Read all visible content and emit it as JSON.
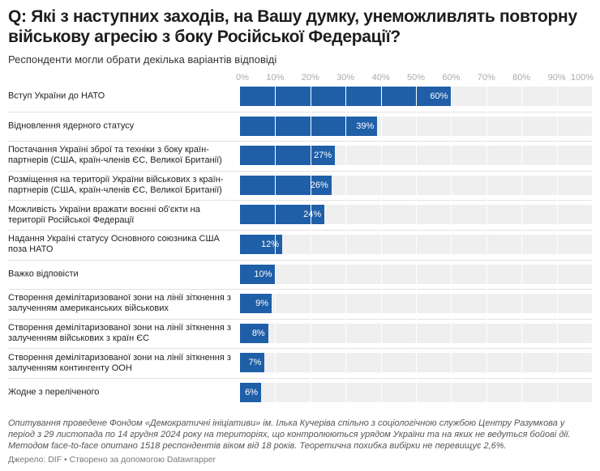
{
  "chart_data": {
    "type": "bar",
    "orientation": "horizontal",
    "title": "Q: Які з наступних заходів, на Вашу думку, унеможливлять повторну військову агресію з боку Російської Федерації?",
    "subtitle": "Респонденти могли обрати декілька варіантів відповіді",
    "xlim": [
      0,
      100
    ],
    "ticks": [
      "0%",
      "10%",
      "20%",
      "30%",
      "40%",
      "50%",
      "60%",
      "70%",
      "80%",
      "90%",
      "100%"
    ],
    "categories": [
      "Вступ України до НАТО",
      "Відновлення ядерного статусу",
      "Постачання Україні зброї та техніки з боку країн-партнерів (США, країн-членів ЄС, Великої Британії)",
      "Розміщення на території України військових з країн-партнерів (США, країн-членів ЄС, Великої Британії)",
      "Можливість України вражати воєнні об'єкти на території Російської Федерації",
      "Надання Україні статусу Основного союзника США поза НАТО",
      "Важко відповісти",
      "Створення демілітаризованої зони на лінії зіткнення з залученням американських військових",
      "Створення демілітаризованої зони на лінії зіткнення з залученням військових з країн ЄС",
      "Створення демілітаризованої зони на лінії зіткнення з залученням контингенту ООН",
      "Жодне з переліченого"
    ],
    "values": [
      60,
      39,
      27,
      26,
      24,
      12,
      10,
      9,
      8,
      7,
      6
    ],
    "value_labels": [
      "60%",
      "39%",
      "27%",
      "26%",
      "24%",
      "12%",
      "10%",
      "9%",
      "8%",
      "7%",
      "6%"
    ],
    "colors": {
      "bar": "#1f5fa8",
      "background": "#efefef"
    }
  },
  "notes": "Опитування проведене Фондом «Демократичні ініціативи» ім. Ілька Кучеріва спільно з соціологічною службою Центру Разумкова у період з 29 листопада по 14 грудня 2024 року на територіях, що контролюються урядом України та на яких не ведуться бойові дії. Методом face-to-face опитано 1518 респондентів віком від 18 років. Теоретична похибка вибірки не перевищує 2,6%.",
  "source": "Джерело: DIF • Створено за допомогою Datawrapper"
}
